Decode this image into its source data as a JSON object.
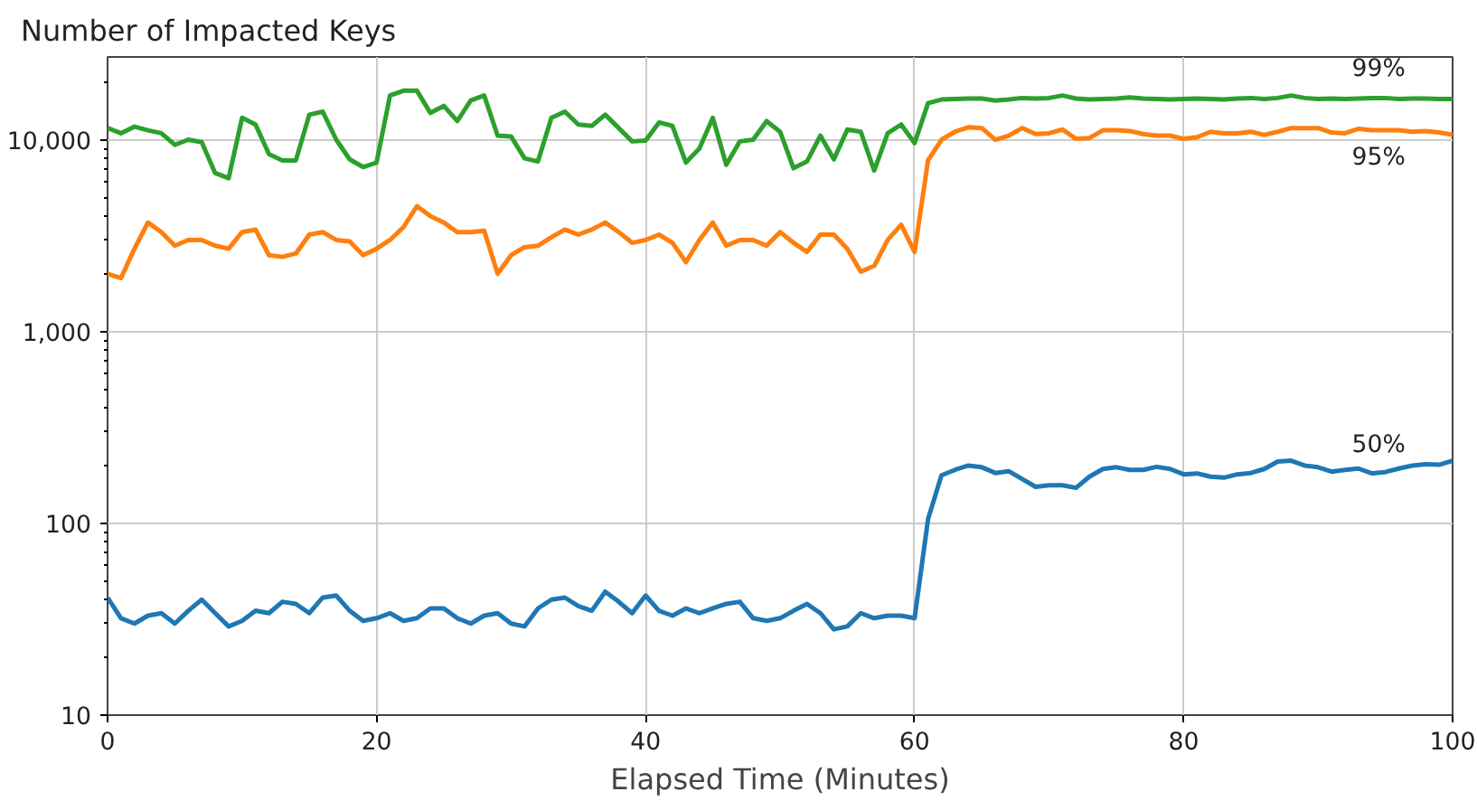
{
  "chart_data": {
    "type": "line",
    "title": "Number of Impacted Keys",
    "xlabel": "Elapsed Time (Minutes)",
    "xlim": [
      0,
      100
    ],
    "xticks": [
      0,
      20,
      40,
      60,
      80,
      100
    ],
    "ylim": [
      10,
      27000
    ],
    "yticks": [
      10,
      100,
      {
        "value": 1000,
        "label": "1,000"
      },
      {
        "value": 10000,
        "label": "10,000"
      }
    ],
    "log": "y",
    "grid": true,
    "legend": false,
    "marker": "none",
    "line_style": "solid",
    "x": [
      0,
      1,
      2,
      3,
      4,
      5,
      6,
      7,
      8,
      9,
      10,
      11,
      12,
      13,
      14,
      15,
      16,
      17,
      18,
      19,
      20,
      21,
      22,
      23,
      24,
      25,
      26,
      27,
      28,
      29,
      30,
      31,
      32,
      33,
      34,
      35,
      36,
      37,
      38,
      39,
      40,
      41,
      42,
      43,
      44,
      45,
      46,
      47,
      48,
      49,
      50,
      51,
      52,
      53,
      54,
      55,
      56,
      57,
      58,
      59,
      60,
      61,
      62,
      63,
      64,
      65,
      66,
      67,
      68,
      69,
      70,
      71,
      72,
      73,
      74,
      75,
      76,
      77,
      78,
      79,
      80,
      81,
      82,
      83,
      84,
      85,
      86,
      87,
      88,
      89,
      90,
      91,
      92,
      93,
      94,
      95,
      96,
      97,
      98,
      99,
      100
    ],
    "series": [
      {
        "name": "50%",
        "color": "#1f77b4",
        "values": [
          41,
          32,
          30,
          33,
          34,
          30,
          35,
          40,
          34,
          29,
          31,
          35,
          34,
          39,
          38,
          34,
          41,
          42,
          35,
          31,
          32,
          34,
          31,
          32,
          36,
          36,
          32,
          30,
          33,
          34,
          30,
          29,
          36,
          40,
          41,
          37,
          35,
          44,
          39,
          34,
          42,
          35,
          33,
          36,
          34,
          36,
          38,
          39,
          32,
          31,
          32,
          35,
          38,
          34,
          28,
          29,
          34,
          32,
          33,
          33,
          32,
          105,
          178,
          190,
          200,
          196,
          183,
          187,
          170,
          155,
          158,
          158,
          153,
          175,
          192,
          196,
          190,
          190,
          197,
          192,
          180,
          182,
          175,
          173,
          180,
          183,
          192,
          210,
          212,
          200,
          196,
          186,
          190,
          193,
          182,
          185,
          193,
          200,
          203,
          202,
          212
        ]
      },
      {
        "name": "95%",
        "color": "#ff7f0e",
        "values": [
          2000,
          1900,
          2700,
          3700,
          3300,
          2800,
          3000,
          3000,
          2800,
          2700,
          3300,
          3400,
          2500,
          2450,
          2550,
          3200,
          3300,
          3000,
          2950,
          2500,
          2700,
          3000,
          3500,
          4500,
          4000,
          3700,
          3300,
          3300,
          3350,
          2000,
          2500,
          2750,
          2800,
          3100,
          3400,
          3200,
          3400,
          3700,
          3300,
          2900,
          3000,
          3200,
          2900,
          2300,
          3000,
          3700,
          2800,
          3000,
          3000,
          2800,
          3300,
          2900,
          2600,
          3200,
          3200,
          2700,
          2050,
          2200,
          3000,
          3600,
          2600,
          7800,
          10000,
          11000,
          11600,
          11500,
          10000,
          10500,
          11500,
          10700,
          10800,
          11300,
          10100,
          10200,
          11200,
          11200,
          11100,
          10700,
          10500,
          10500,
          10100,
          10300,
          11000,
          10800,
          10800,
          11000,
          10600,
          11000,
          11500,
          11500,
          11500,
          10900,
          10800,
          11400,
          11200,
          11200,
          11200,
          11000,
          11100,
          10900,
          10600
        ]
      },
      {
        "name": "99%",
        "color": "#2ca02c",
        "values": [
          11500,
          10800,
          11700,
          11200,
          10800,
          9400,
          10000,
          9700,
          6700,
          6300,
          13000,
          12000,
          8400,
          7800,
          7800,
          13500,
          14000,
          10000,
          7900,
          7200,
          7600,
          17000,
          18000,
          18000,
          13800,
          15000,
          12500,
          16000,
          17000,
          10500,
          10400,
          8000,
          7700,
          13000,
          14000,
          12000,
          11800,
          13500,
          11500,
          9800,
          9900,
          12300,
          11800,
          7600,
          9000,
          13000,
          7400,
          9800,
          10000,
          12500,
          11000,
          7100,
          7700,
          10500,
          7900,
          11300,
          11000,
          6900,
          10800,
          12000,
          9600,
          15500,
          16200,
          16300,
          16400,
          16400,
          16000,
          16200,
          16500,
          16400,
          16500,
          17000,
          16400,
          16200,
          16300,
          16400,
          16600,
          16400,
          16300,
          16200,
          16300,
          16400,
          16300,
          16200,
          16400,
          16500,
          16300,
          16500,
          17000,
          16500,
          16300,
          16400,
          16300,
          16400,
          16500,
          16500,
          16300,
          16400,
          16400,
          16300,
          16300
        ]
      }
    ]
  }
}
